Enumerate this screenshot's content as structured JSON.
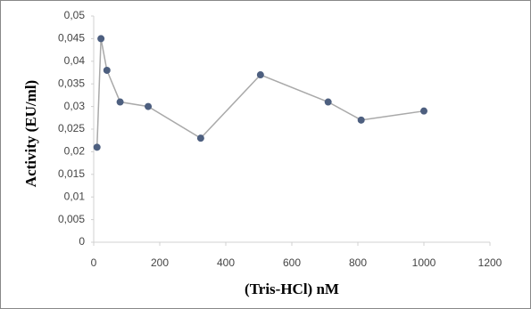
{
  "chart_data": {
    "type": "line",
    "x_label": "(Tris-HCl) nM",
    "y_label": "Activity (EU/ml)",
    "series": [
      {
        "color": "#a9a9a9",
        "marker_color": "#4d5f7f",
        "x": [
          10,
          22,
          40,
          80,
          165,
          324,
          505,
          710,
          810,
          1000
        ],
        "values": [
          0.021,
          0.045,
          0.038,
          0.031,
          0.03,
          0.023,
          0.037,
          0.031,
          0.027,
          0.029
        ]
      }
    ],
    "xlim": [
      0,
      1200
    ],
    "xticks": [
      0,
      200,
      400,
      600,
      800,
      1000,
      1200
    ],
    "ylim": [
      0,
      0.05
    ],
    "yticks": [
      0,
      {
        "value": 0.005,
        "label": "0,005"
      },
      {
        "value": 0.01,
        "label": "0,01"
      },
      {
        "value": 0.015,
        "label": "0,015"
      },
      {
        "value": 0.02,
        "label": "0,02"
      },
      {
        "value": 0.025,
        "label": "0,025"
      },
      {
        "value": 0.03,
        "label": "0,03"
      },
      {
        "value": 0.035,
        "label": "0,035"
      },
      {
        "value": 0.04,
        "label": "0,04"
      },
      {
        "value": 0.045,
        "label": "0,045"
      },
      {
        "value": 0.05,
        "label": "0,05"
      }
    ],
    "grid": false
  }
}
